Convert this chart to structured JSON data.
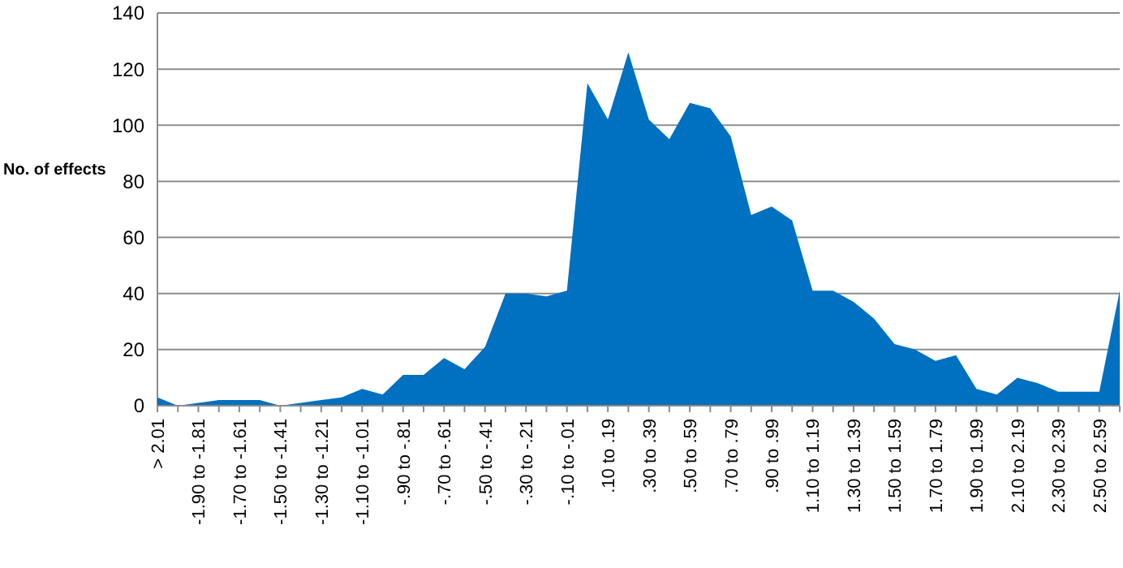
{
  "chart_data": {
    "type": "area",
    "ylabel": "No. of effects",
    "categories": [
      "> 2.01",
      null,
      "-1.90 to -1.81",
      null,
      "-1.70 to -1.61",
      null,
      "-1.50 to -1.41",
      null,
      "-1.30 to -1.21",
      null,
      "-1.10 to -1.01",
      null,
      "-.90 to -.81",
      null,
      "-.70 to -.61",
      null,
      "-.50 to -.41",
      null,
      "-.30 to -.21",
      null,
      "-.10 to -.01",
      null,
      ".10 to .19",
      null,
      ".30 to .39",
      null,
      ".50 to .59",
      null,
      ".70 to .79",
      null,
      ".90 to .99",
      null,
      "1.10 to 1.19",
      null,
      "1.30 to 1.39",
      null,
      "1.50 to 1.59",
      null,
      "1.70 to 1.79",
      null,
      "1.90 to 1.99",
      null,
      "2.10 to 2.19",
      null,
      "2.30 to 2.39",
      null,
      "2.50 to 2.59",
      null
    ],
    "values": [
      3,
      0,
      1,
      2,
      2,
      2,
      0,
      1,
      2,
      3,
      6,
      4,
      11,
      11,
      17,
      13,
      21,
      40,
      40,
      39,
      41,
      115,
      102,
      126,
      102,
      95,
      108,
      106,
      96,
      68,
      71,
      66,
      41,
      41,
      37,
      31,
      22,
      20,
      16,
      18,
      6,
      4,
      10,
      8,
      5,
      5,
      5,
      41
    ],
    "color": "#0070c0",
    "ylim": [
      0,
      140
    ],
    "yticks": [
      0,
      20,
      40,
      60,
      80,
      100,
      120,
      140
    ],
    "grid": "y"
  }
}
